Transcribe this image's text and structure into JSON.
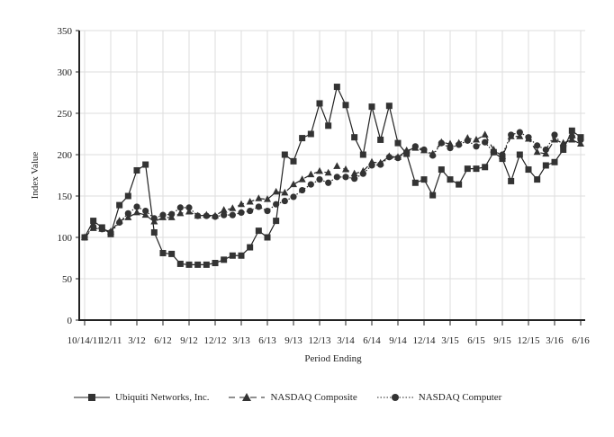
{
  "chart_data": {
    "type": "line",
    "title": "",
    "xlabel": "Period Ending",
    "ylabel": "Index Value",
    "ylim": [
      0,
      350
    ],
    "yticks": [
      0,
      50,
      100,
      150,
      200,
      250,
      300,
      350
    ],
    "grid": true,
    "legend_placement": "bottom",
    "xtick_labels": [
      "10/14/11",
      "12/11",
      "3/12",
      "6/12",
      "9/12",
      "12/12",
      "3/13",
      "6/13",
      "9/13",
      "12/13",
      "3/14",
      "6/14",
      "9/14",
      "12/14",
      "3/15",
      "6/15",
      "9/15",
      "12/15",
      "3/16",
      "6/16"
    ],
    "points_per_tick": 3,
    "series": [
      {
        "name": "Ubiquiti Networks, Inc.",
        "marker": "square",
        "dash": "solid",
        "values": [
          100,
          120,
          112,
          104,
          139,
          150,
          181,
          188,
          106,
          81,
          80,
          68,
          67,
          67,
          67,
          69,
          73,
          78,
          78,
          88,
          108,
          100,
          120,
          200,
          192,
          220,
          225,
          262,
          235,
          282,
          260,
          221,
          200,
          258,
          218,
          259,
          214,
          201,
          166,
          170,
          151,
          182,
          170,
          164,
          183,
          183,
          185,
          203,
          195,
          168,
          200,
          182,
          170,
          187,
          191,
          206,
          229,
          221
        ]
      },
      {
        "name": "NASDAQ Composite",
        "marker": "triangle",
        "dash": "dashed",
        "values": [
          100,
          111,
          110,
          107,
          120,
          124,
          130,
          127,
          119,
          124,
          124,
          129,
          131,
          126,
          127,
          126,
          133,
          135,
          140,
          143,
          147,
          146,
          155,
          154,
          164,
          170,
          176,
          180,
          178,
          186,
          182,
          177,
          180,
          191,
          190,
          198,
          197,
          205,
          208,
          205,
          201,
          215,
          213,
          214,
          220,
          218,
          224,
          206,
          198,
          222,
          222,
          219,
          203,
          201,
          218,
          214,
          218,
          213
        ]
      },
      {
        "name": "NASDAQ Computer",
        "marker": "circle",
        "dash": "dotted",
        "values": [
          100,
          113,
          110,
          106,
          118,
          129,
          137,
          132,
          123,
          127,
          128,
          136,
          136,
          126,
          126,
          125,
          127,
          127,
          130,
          132,
          137,
          132,
          140,
          144,
          149,
          157,
          164,
          170,
          166,
          173,
          173,
          171,
          177,
          187,
          188,
          197,
          196,
          203,
          210,
          206,
          199,
          214,
          208,
          212,
          217,
          210,
          215,
          203,
          200,
          224,
          227,
          221,
          211,
          206,
          224,
          210,
          222,
          218
        ]
      }
    ]
  }
}
